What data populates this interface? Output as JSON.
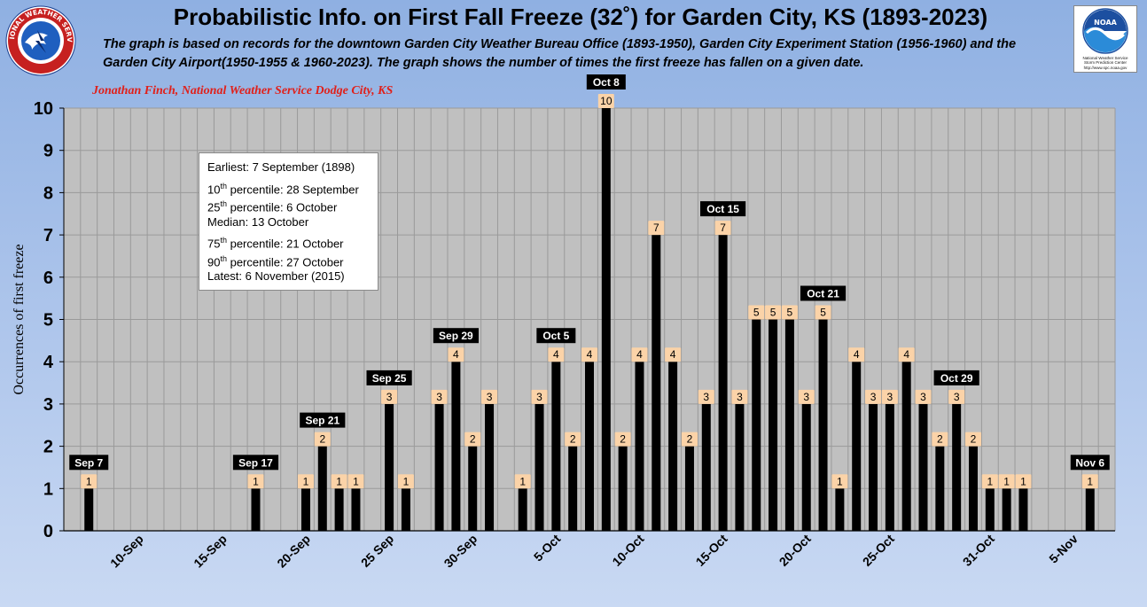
{
  "header": {
    "title": "Probabilistic Info. on First Fall Freeze (32˚) for Garden City, KS (1893-2023)",
    "subtitle_line1": "The graph is based on records for the downtown Garden City Weather Bureau Office (1893-1950), Garden City Experiment Station (1956-1960) and the",
    "subtitle_line2": "Garden City Airport(1950-1955 & 1960-2023). The graph shows the number of times the first freeze has fallen on a given date.",
    "credit": "Jonathan Finch, National Weather Service Dodge City, KS"
  },
  "logos": {
    "nws_text": "NATIONAL WEATHER SERVICE",
    "noaa_text": "NOAA",
    "noaa_caption1": "National Weather Service",
    "noaa_caption2": "Storm Prediction Center",
    "noaa_caption3": "http://www.spc.noaa.gov"
  },
  "stats": {
    "earliest": "Earliest: 7 September (1898)",
    "p10_num": "10",
    "p10_sup": "th",
    "p10_text": " percentile: 28 September",
    "p25_num": "25",
    "p25_sup": "th",
    "p25_text": " percentile: 6 October",
    "median": "Median: 13 October",
    "p75_num": "75",
    "p75_sup": "th",
    "p75_text": " percentile: 21 October",
    "p90_num": "90",
    "p90_sup": "th",
    "p90_text": " percentile: 27 October",
    "latest": "Latest: 6 November (2015)"
  },
  "colors": {
    "plot_bg": "#c0c0c0",
    "grid": "#9a9a9a",
    "bar": "#000000",
    "data_label_bg": "#fbd3a8",
    "callout_bg": "#000000",
    "callout_text": "#ffffff"
  },
  "chart_data": {
    "type": "bar",
    "ylabel": "Occurrences of first freeze",
    "xlabel": "",
    "ylim": [
      0,
      10
    ],
    "yticks": [
      0,
      1,
      2,
      3,
      4,
      5,
      6,
      7,
      8,
      9,
      10
    ],
    "grid": true,
    "categories": [
      "6-Sep",
      "7-Sep",
      "8-Sep",
      "9-Sep",
      "10-Sep",
      "11-Sep",
      "12-Sep",
      "13-Sep",
      "14-Sep",
      "15-Sep",
      "16-Sep",
      "17-Sep",
      "18-Sep",
      "19-Sep",
      "20-Sep",
      "21-Sep",
      "22-Sep",
      "23-Sep",
      "24-Sep",
      "25-Sep",
      "26-Sep",
      "27-Sep",
      "28-Sep",
      "29-Sep",
      "30-Sep",
      "1-Oct",
      "2-Oct",
      "3-Oct",
      "4-Oct",
      "5-Oct",
      "6-Oct",
      "7-Oct",
      "8-Oct",
      "9-Oct",
      "10-Oct",
      "11-Oct",
      "12-Oct",
      "13-Oct",
      "14-Oct",
      "15-Oct",
      "16-Oct",
      "17-Oct",
      "18-Oct",
      "19-Oct",
      "20-Oct",
      "21-Oct",
      "22-Oct",
      "23-Oct",
      "24-Oct",
      "25-Oct",
      "26-Oct",
      "27-Oct",
      "28-Oct",
      "29-Oct",
      "30-Oct",
      "31-Oct",
      "1-Nov",
      "2-Nov",
      "3-Nov",
      "4-Nov",
      "5-Nov",
      "6-Nov",
      "7-Nov"
    ],
    "tick_labels": [
      {
        "index": 4,
        "label": "10-Sep"
      },
      {
        "index": 9,
        "label": "15-Sep"
      },
      {
        "index": 14,
        "label": "20-Sep"
      },
      {
        "index": 19,
        "label": "25 Sep"
      },
      {
        "index": 24,
        "label": "30-Sep"
      },
      {
        "index": 29,
        "label": "5-Oct"
      },
      {
        "index": 34,
        "label": "10-Oct"
      },
      {
        "index": 39,
        "label": "15-Oct"
      },
      {
        "index": 44,
        "label": "20-Oct"
      },
      {
        "index": 49,
        "label": "25-Oct"
      },
      {
        "index": 55,
        "label": "31-Oct"
      },
      {
        "index": 60,
        "label": "5-Nov"
      }
    ],
    "values": [
      0,
      1,
      0,
      0,
      0,
      0,
      0,
      0,
      0,
      0,
      0,
      1,
      0,
      0,
      1,
      2,
      1,
      1,
      0,
      3,
      1,
      0,
      3,
      4,
      2,
      3,
      0,
      1,
      3,
      4,
      2,
      4,
      10,
      2,
      4,
      7,
      4,
      2,
      3,
      7,
      3,
      5,
      5,
      5,
      3,
      5,
      1,
      4,
      3,
      3,
      4,
      3,
      2,
      3,
      2,
      1,
      1,
      1,
      0,
      0,
      0,
      1,
      0
    ],
    "annotations": [
      {
        "index": 1,
        "label": "Sep 7"
      },
      {
        "index": 11,
        "label": "Sep 17"
      },
      {
        "index": 15,
        "label": "Sep 21"
      },
      {
        "index": 19,
        "label": "Sep 25"
      },
      {
        "index": 23,
        "label": "Sep 29"
      },
      {
        "index": 29,
        "label": "Oct 5"
      },
      {
        "index": 32,
        "label": "Oct 8"
      },
      {
        "index": 39,
        "label": "Oct 15"
      },
      {
        "index": 45,
        "label": "Oct 21"
      },
      {
        "index": 53,
        "label": "Oct 29"
      },
      {
        "index": 61,
        "label": "Nov 6"
      }
    ]
  }
}
